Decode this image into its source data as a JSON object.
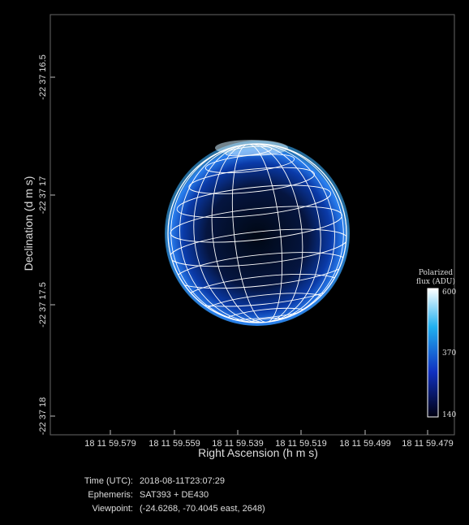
{
  "axes": {
    "y_label": "Declination (d m s)",
    "x_label": "Right Ascension (h m s)",
    "y_ticks": [
      "-22 37 16.5",
      "-22 37 17",
      "-22 37 17.5",
      "-22 37 18"
    ],
    "x_ticks": [
      "18 11 59.579",
      "18 11 59.559",
      "18 11 59.539",
      "18 11 59.519",
      "18 11 59.499",
      "18 11 59.479"
    ]
  },
  "colorbar": {
    "title": [
      "Polarized",
      "flux (ADU)"
    ],
    "ticks": [
      600,
      370,
      140
    ]
  },
  "info": [
    {
      "key": "Time (UTC):",
      "value": "2018-08-11T23:07:29"
    },
    {
      "key": "Ephemeris:",
      "value": "SAT393 + DE430"
    },
    {
      "key": "Viewpoint:",
      "value": "(-24.6268, -70.4045 east, 2648)"
    }
  ]
}
